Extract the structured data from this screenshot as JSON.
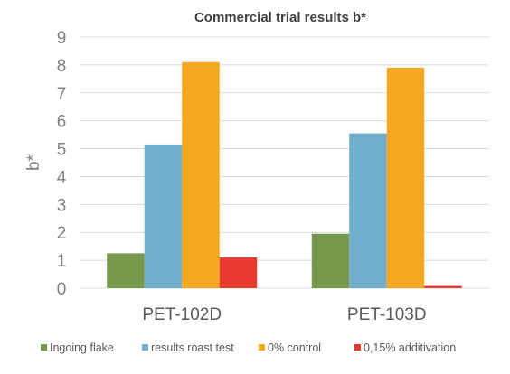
{
  "chart_data": {
    "type": "bar",
    "title": "Commercial trial results b*",
    "xlabel": "",
    "ylabel": "b*",
    "ylim": [
      0,
      9
    ],
    "yticks": [
      0,
      1,
      2,
      3,
      4,
      5,
      6,
      7,
      8,
      9
    ],
    "grid": true,
    "legend_position": "bottom",
    "categories": [
      "PET-102D",
      "PET-103D"
    ],
    "series": [
      {
        "name": "Ingoing flake",
        "color": "#76984a",
        "values": [
          1.25,
          1.95
        ]
      },
      {
        "name": "results roast test",
        "color": "#70aecb",
        "values": [
          5.15,
          5.55
        ]
      },
      {
        "name": "0% control",
        "color": "#f5a71f",
        "values": [
          8.1,
          7.9
        ]
      },
      {
        "name": "0,15% additivation",
        "color": "#e93a2f",
        "values": [
          1.1,
          0.08
        ]
      }
    ]
  }
}
